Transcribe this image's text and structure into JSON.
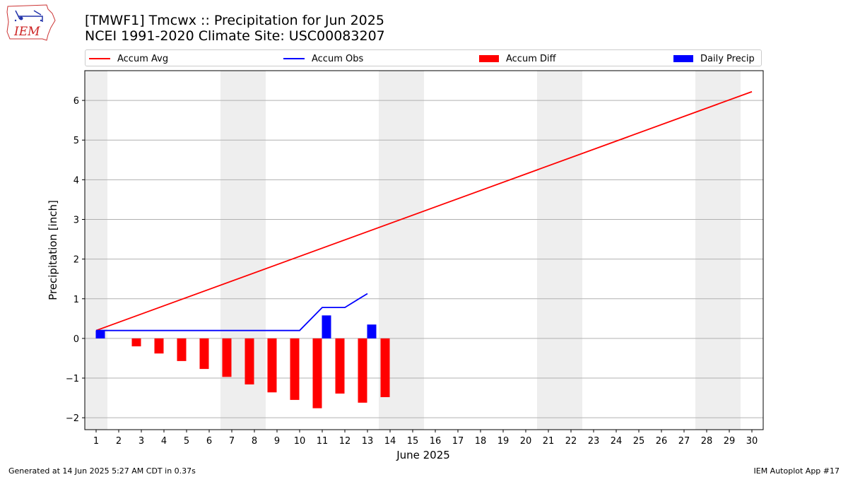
{
  "header": {
    "logo_text": "IEM",
    "title_line1": "[TMWF1] Tmcwx :: Precipitation for Jun 2025",
    "title_line2": "NCEI 1991-2020 Climate Site: USC00083207"
  },
  "legend": {
    "items": [
      {
        "label": "Accum Avg",
        "kind": "line",
        "color": "#ff0000"
      },
      {
        "label": "Accum Obs",
        "kind": "line",
        "color": "#0000ff"
      },
      {
        "label": "Accum Diff",
        "kind": "box",
        "color": "#ff0000"
      },
      {
        "label": "Daily Precip",
        "kind": "box",
        "color": "#0000ff"
      }
    ]
  },
  "footer": {
    "left": "Generated at 14 Jun 2025 5:27 AM CDT in 0.37s",
    "right": "IEM Autoplot App #17"
  },
  "chart_data": {
    "type": "bar",
    "xlabel": "June 2025",
    "ylabel": "Precipitation [inch]",
    "xlim": [
      0.5,
      30.5
    ],
    "ylim": [
      -2.3,
      6.75
    ],
    "x_ticks": [
      1,
      2,
      3,
      4,
      5,
      6,
      7,
      8,
      9,
      10,
      11,
      12,
      13,
      14,
      15,
      16,
      17,
      18,
      19,
      20,
      21,
      22,
      23,
      24,
      25,
      26,
      27,
      28,
      29,
      30
    ],
    "y_ticks": [
      -2,
      -1,
      0,
      1,
      2,
      3,
      4,
      5,
      6
    ],
    "y_tick_labels": [
      "−2",
      "−1",
      "0",
      "1",
      "2",
      "3",
      "4",
      "5",
      "6"
    ],
    "grid": "horizontal",
    "weekend_shading": [
      [
        0.5,
        1.5
      ],
      [
        6.5,
        8.5
      ],
      [
        13.5,
        15.5
      ],
      [
        20.5,
        22.5
      ],
      [
        27.5,
        29.5
      ]
    ],
    "shading_color": "#eeeeee",
    "series": [
      {
        "name": "Accum Avg",
        "type": "line",
        "color": "#ff0000",
        "x": [
          1,
          30
        ],
        "values": [
          0.2,
          6.22
        ]
      },
      {
        "name": "Accum Obs",
        "type": "line",
        "color": "#0000ff",
        "x": [
          1,
          2,
          3,
          4,
          5,
          6,
          7,
          8,
          9,
          10,
          11,
          12,
          13
        ],
        "values": [
          0.2,
          0.2,
          0.2,
          0.2,
          0.2,
          0.2,
          0.2,
          0.2,
          0.2,
          0.2,
          0.78,
          0.78,
          1.13
        ]
      },
      {
        "name": "Accum Diff",
        "type": "bar",
        "color": "#ff0000",
        "x": [
          1,
          2,
          3,
          4,
          5,
          6,
          7,
          8,
          9,
          10,
          11,
          12,
          13
        ],
        "values": [
          0.0,
          -0.2,
          -0.38,
          -0.57,
          -0.77,
          -0.97,
          -1.16,
          -1.36,
          -1.55,
          -1.76,
          -1.39,
          -1.62,
          -1.48
        ]
      },
      {
        "name": "Daily Precip",
        "type": "bar",
        "color": "#0000ff",
        "x": [
          1,
          2,
          3,
          4,
          5,
          6,
          7,
          8,
          9,
          10,
          11,
          12,
          13
        ],
        "values": [
          0.2,
          0,
          0,
          0,
          0,
          0,
          0,
          0,
          0,
          0,
          0.58,
          0,
          0.35
        ]
      }
    ]
  }
}
